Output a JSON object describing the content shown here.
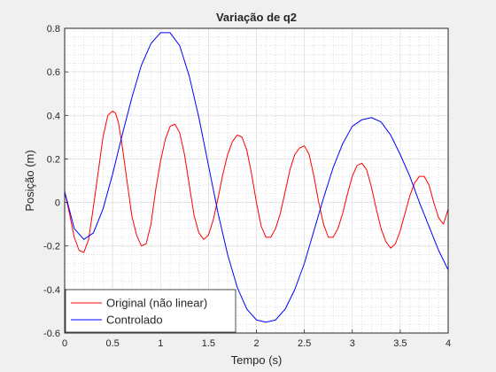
{
  "chart_data": {
    "type": "line",
    "title": "Variação de q2",
    "xlabel": "Tempo (s)",
    "ylabel": "Posição (m)",
    "xlim": [
      0,
      4
    ],
    "ylim": [
      -0.6,
      0.8
    ],
    "xticks": [
      0,
      0.5,
      1,
      1.5,
      2,
      2.5,
      3,
      3.5,
      4
    ],
    "xtick_labels": [
      "0",
      "0.5",
      "1",
      "1.5",
      "2",
      "2.5",
      "3",
      "3.5",
      "4"
    ],
    "yticks": [
      -0.6,
      -0.4,
      -0.2,
      0,
      0.2,
      0.4,
      0.6,
      0.8
    ],
    "ytick_labels": [
      "-0.6",
      "-0.4",
      "-0.2",
      "0",
      "0.2",
      "0.4",
      "0.6",
      "0.8"
    ],
    "grid": "on (major and minor)",
    "legend_position": "bottom-left",
    "series": [
      {
        "name": "Original (não linear)",
        "color": "#ff0000",
        "x": [
          0,
          0.05,
          0.1,
          0.15,
          0.2,
          0.25,
          0.3,
          0.35,
          0.4,
          0.45,
          0.5,
          0.53,
          0.56,
          0.6,
          0.65,
          0.7,
          0.75,
          0.8,
          0.85,
          0.9,
          0.95,
          1.0,
          1.05,
          1.1,
          1.15,
          1.2,
          1.25,
          1.3,
          1.35,
          1.4,
          1.45,
          1.5,
          1.55,
          1.6,
          1.65,
          1.7,
          1.75,
          1.8,
          1.85,
          1.9,
          1.95,
          2.0,
          2.05,
          2.1,
          2.15,
          2.2,
          2.25,
          2.3,
          2.35,
          2.4,
          2.45,
          2.5,
          2.55,
          2.6,
          2.65,
          2.7,
          2.75,
          2.8,
          2.85,
          2.9,
          2.95,
          3.0,
          3.05,
          3.1,
          3.15,
          3.2,
          3.25,
          3.3,
          3.35,
          3.4,
          3.45,
          3.5,
          3.55,
          3.6,
          3.65,
          3.7,
          3.75,
          3.8,
          3.85,
          3.9,
          3.95,
          4.0
        ],
        "y": [
          0.05,
          -0.05,
          -0.16,
          -0.22,
          -0.23,
          -0.17,
          -0.02,
          0.14,
          0.3,
          0.4,
          0.42,
          0.41,
          0.37,
          0.26,
          0.1,
          -0.06,
          -0.15,
          -0.2,
          -0.19,
          -0.1,
          0.06,
          0.19,
          0.29,
          0.35,
          0.36,
          0.32,
          0.22,
          0.08,
          -0.06,
          -0.14,
          -0.17,
          -0.15,
          -0.08,
          0.02,
          0.13,
          0.22,
          0.28,
          0.31,
          0.3,
          0.24,
          0.13,
          0.0,
          -0.11,
          -0.16,
          -0.16,
          -0.12,
          -0.05,
          0.05,
          0.15,
          0.22,
          0.25,
          0.26,
          0.22,
          0.12,
          0.0,
          -0.1,
          -0.16,
          -0.16,
          -0.12,
          -0.05,
          0.04,
          0.12,
          0.17,
          0.18,
          0.15,
          0.07,
          -0.03,
          -0.12,
          -0.18,
          -0.21,
          -0.19,
          -0.13,
          -0.05,
          0.03,
          0.09,
          0.12,
          0.12,
          0.08,
          0.0,
          -0.07,
          -0.1,
          -0.03
        ]
      },
      {
        "name": "Controlado",
        "color": "#0000ff",
        "x": [
          0,
          0.1,
          0.2,
          0.3,
          0.4,
          0.5,
          0.6,
          0.7,
          0.8,
          0.9,
          1.0,
          1.1,
          1.2,
          1.3,
          1.4,
          1.5,
          1.6,
          1.7,
          1.8,
          1.9,
          2.0,
          2.1,
          2.2,
          2.3,
          2.4,
          2.5,
          2.6,
          2.7,
          2.8,
          2.9,
          3.0,
          3.1,
          3.2,
          3.3,
          3.4,
          3.5,
          3.6,
          3.7,
          3.8,
          3.9,
          4.0
        ],
        "y": [
          0.05,
          -0.12,
          -0.17,
          -0.14,
          -0.03,
          0.13,
          0.31,
          0.48,
          0.63,
          0.73,
          0.78,
          0.78,
          0.72,
          0.58,
          0.39,
          0.17,
          -0.05,
          -0.24,
          -0.39,
          -0.49,
          -0.54,
          -0.55,
          -0.54,
          -0.49,
          -0.4,
          -0.28,
          -0.13,
          0.02,
          0.16,
          0.27,
          0.35,
          0.38,
          0.39,
          0.37,
          0.31,
          0.22,
          0.12,
          0.0,
          -0.11,
          -0.22,
          -0.31
        ]
      }
    ]
  }
}
